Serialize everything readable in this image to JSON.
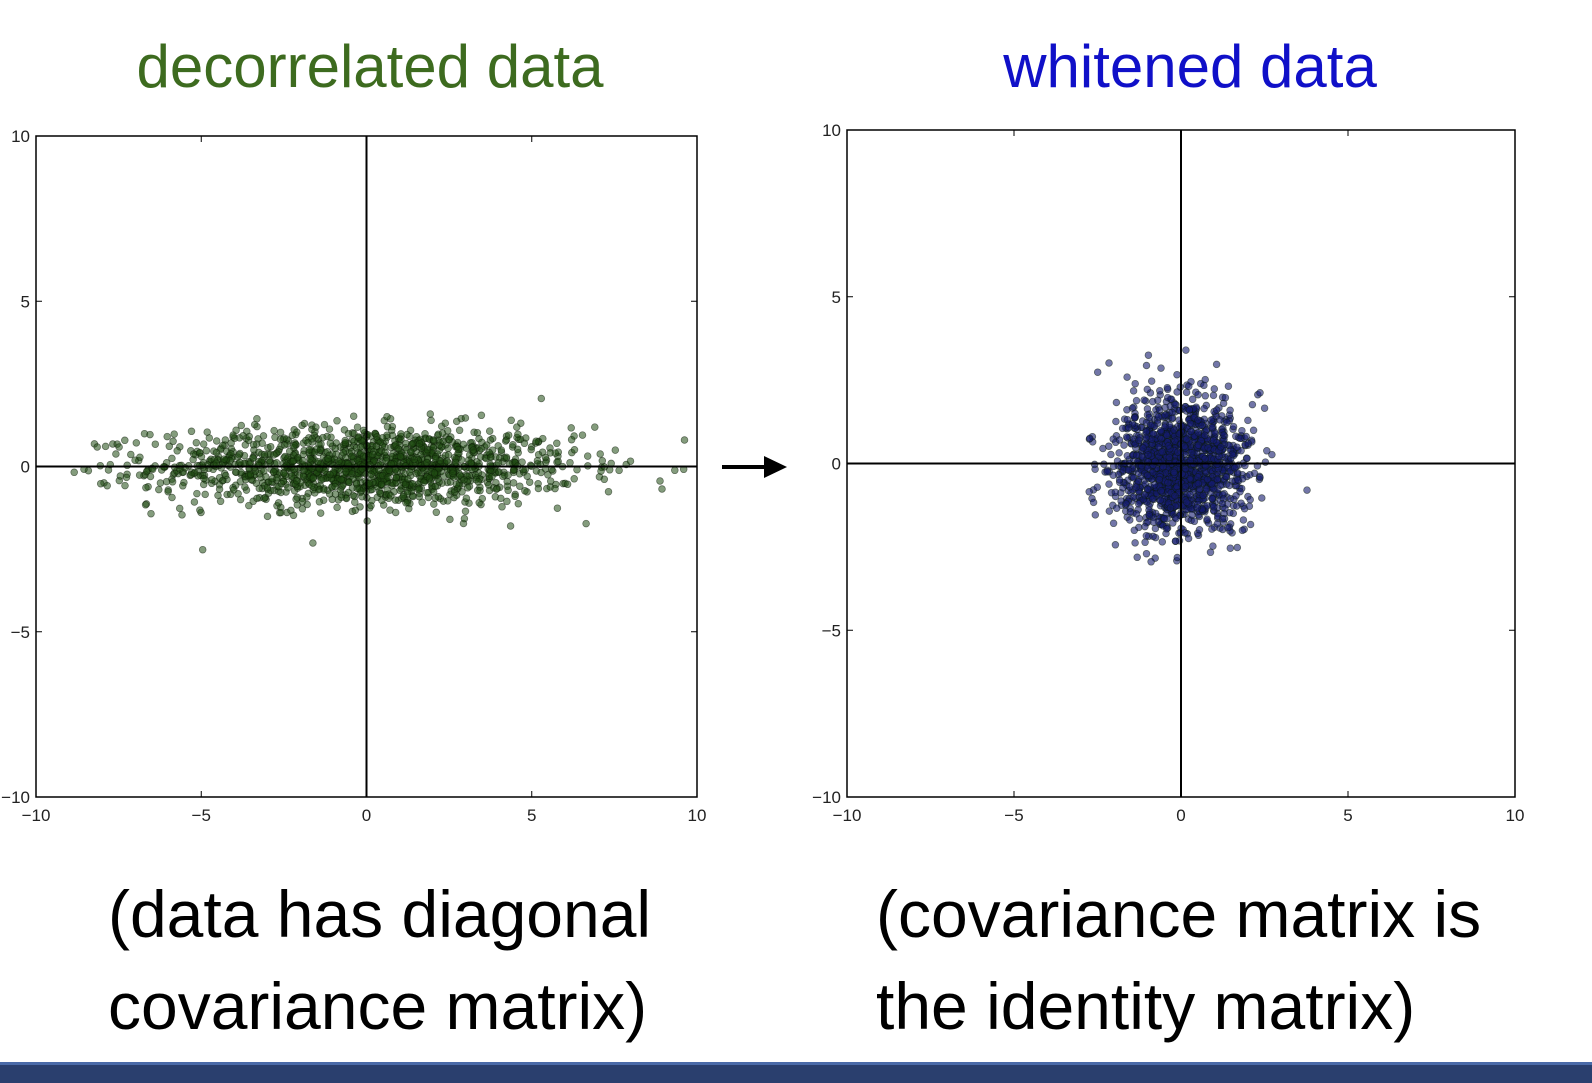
{
  "chart_data": [
    {
      "type": "scatter",
      "title": "decorrelated data",
      "title_color": "#3d6b1f",
      "xlim": [
        -10,
        10
      ],
      "ylim": [
        -10,
        10
      ],
      "xticks": [
        "−10",
        "−5",
        "0",
        "5",
        "10"
      ],
      "yticks": [
        "10",
        "5",
        "0",
        "−5",
        "−10"
      ],
      "point_color": "#1f4a12",
      "point_alpha": 0.55,
      "distribution": {
        "mean_x": 0,
        "mean_y": 0,
        "std_x": 3.2,
        "std_y": 0.6,
        "n": 1500
      },
      "caption": [
        "(data has diagonal",
        "covariance matrix)"
      ]
    },
    {
      "type": "scatter",
      "title": "whitened data",
      "title_color": "#1010c8",
      "xlim": [
        -10,
        10
      ],
      "ylim": [
        -10,
        10
      ],
      "xticks": [
        "−10",
        "−5",
        "0",
        "5",
        "10"
      ],
      "yticks": [
        "10",
        "5",
        "0",
        "−5",
        "−10"
      ],
      "point_color": "#141a6e",
      "point_alpha": 0.6,
      "distribution": {
        "mean_x": 0,
        "mean_y": 0,
        "std_x": 1.0,
        "std_y": 1.0,
        "n": 1500
      },
      "caption": [
        "(covariance matrix is",
        "the identity matrix)"
      ]
    }
  ],
  "arrow_icon": "right-arrow-icon"
}
